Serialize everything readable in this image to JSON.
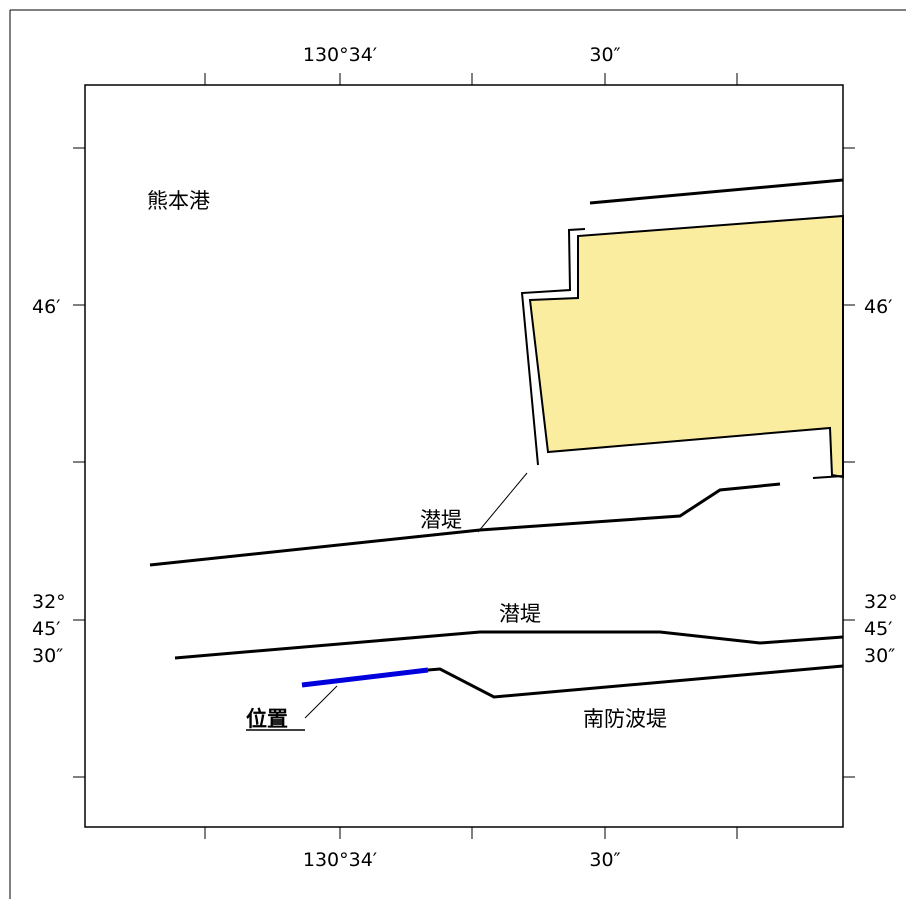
{
  "map": {
    "top_axis": {
      "labels": [
        "130°34′",
        "30″"
      ]
    },
    "bottom_axis": {
      "labels": [
        "130°34′",
        "30″"
      ]
    },
    "left_axis": {
      "upper_label": "46′",
      "lower_labels": [
        "32°",
        "45′",
        "30″"
      ]
    },
    "right_axis": {
      "upper_label": "46′",
      "lower_labels": [
        "32°",
        "45′",
        "30″"
      ]
    },
    "place_name": "熊本港",
    "features": {
      "submerged_breakwater_upper": "潜堤",
      "submerged_breakwater_lower": "潜堤",
      "south_breakwater": "南防波堤",
      "location": "位置"
    },
    "colors": {
      "land_fill": "#FBEDA0",
      "location_line": "#0000DD",
      "lines": "#000000"
    }
  }
}
